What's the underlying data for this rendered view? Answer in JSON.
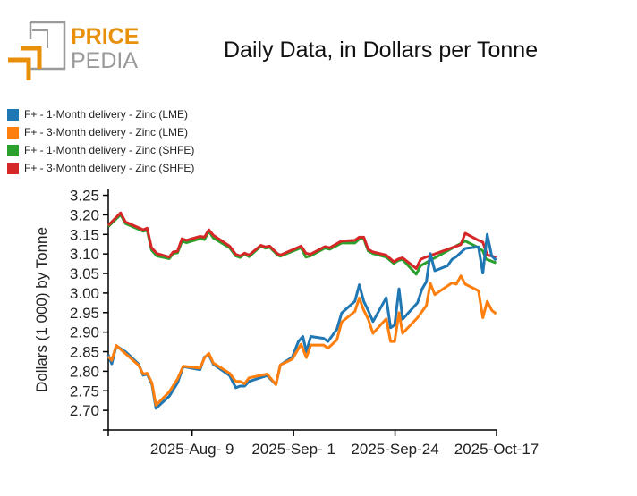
{
  "logo": {
    "text_top": "PRICE",
    "text_bottom": "PEDIA"
  },
  "chart_data": {
    "type": "line",
    "title": "Daily Data, in Dollars per Tonne",
    "xlabel": "",
    "ylabel": "Dollars (1 000) by Tonne",
    "x_unit": "days since 2025-Jul-21",
    "xlim": [
      0,
      88
    ],
    "ylim": [
      2.65,
      3.265
    ],
    "yticks": [
      "2.70",
      "2.75",
      "2.80",
      "2.85",
      "2.90",
      "2.95",
      "3.00",
      "3.05",
      "3.10",
      "3.15",
      "3.20",
      "3.25"
    ],
    "xticks": [
      {
        "x": 19,
        "label": "2025-Aug- 9"
      },
      {
        "x": 42,
        "label": "2025-Sep- 1"
      },
      {
        "x": 65,
        "label": "2025-Sep-24"
      },
      {
        "x": 88,
        "label": "2025-Oct-17"
      }
    ],
    "legend_placement": "top-left",
    "series": [
      {
        "name": "F+ - 1-Month delivery - Zinc (LME)",
        "color": "#1f77b4",
        "x": [
          0,
          0.8,
          1.8,
          3.9,
          6.9,
          7.9,
          8.8,
          9.9,
          10.8,
          13.8,
          15.7,
          17.0,
          20.8,
          21.8,
          22.8,
          23.8,
          27.5,
          28.9,
          29.9,
          30.9,
          31.9,
          36.0,
          38.0,
          39.0,
          41.7,
          43.1,
          44.1,
          44.9,
          45.9,
          48.8,
          49.8,
          51.8,
          52.9,
          55.9,
          56.9,
          57.9,
          58.9,
          60.0,
          63.0,
          64.0,
          64.9,
          65.9,
          66.7,
          70.1,
          71.1,
          72.1,
          73.0,
          74.0,
          76.9,
          77.9,
          78.9,
          80.9,
          83.9,
          84.9,
          85.9,
          86.9,
          87.9
        ],
        "y": [
          2.842,
          2.819,
          2.865,
          2.85,
          2.818,
          2.79,
          2.793,
          2.766,
          2.705,
          2.736,
          2.77,
          2.812,
          2.804,
          2.836,
          2.842,
          2.818,
          2.789,
          2.758,
          2.762,
          2.762,
          2.774,
          2.789,
          2.766,
          2.816,
          2.836,
          2.876,
          2.889,
          2.85,
          2.889,
          2.884,
          2.876,
          2.907,
          2.949,
          2.979,
          3.021,
          2.979,
          2.956,
          2.927,
          2.988,
          2.911,
          2.918,
          3.011,
          2.933,
          2.975,
          3.01,
          3.029,
          3.101,
          3.057,
          3.07,
          3.086,
          3.093,
          3.114,
          3.118,
          3.051,
          3.15,
          3.095,
          3.084
        ]
      },
      {
        "name": "F+ - 3-Month delivery - Zinc (LME)",
        "color": "#ff7f0e",
        "x": [
          0,
          0.8,
          1.8,
          6.9,
          7.9,
          8.8,
          9.9,
          10.8,
          13.8,
          15.7,
          17.0,
          20.8,
          21.8,
          22.8,
          23.8,
          27.5,
          28.9,
          29.9,
          30.9,
          31.9,
          36.0,
          38.0,
          39.0,
          41.7,
          43.7,
          44.9,
          45.9,
          48.8,
          49.8,
          51.8,
          52.9,
          55.9,
          56.9,
          57.9,
          58.9,
          60.0,
          63.0,
          64.0,
          64.9,
          65.9,
          66.7,
          70.1,
          72.1,
          73.0,
          74.0,
          77.9,
          78.9,
          79.9,
          80.9,
          83.9,
          84.9,
          85.9,
          86.9,
          87.9
        ],
        "y": [
          2.838,
          2.828,
          2.866,
          2.815,
          2.793,
          2.795,
          2.77,
          2.713,
          2.747,
          2.78,
          2.813,
          2.808,
          2.834,
          2.846,
          2.821,
          2.795,
          2.774,
          2.774,
          2.768,
          2.783,
          2.793,
          2.766,
          2.816,
          2.831,
          2.869,
          2.835,
          2.867,
          2.867,
          2.859,
          2.88,
          2.926,
          2.953,
          2.987,
          2.956,
          2.934,
          2.897,
          2.934,
          2.876,
          2.876,
          2.95,
          2.897,
          2.937,
          2.968,
          3.025,
          2.996,
          3.026,
          3.023,
          3.044,
          3.023,
          3.006,
          2.937,
          2.979,
          2.956,
          2.947
        ]
      },
      {
        "name": "F+ - 1-Month delivery - Zinc (SHFE)",
        "color": "#2ca02c",
        "x": [
          0,
          2.8,
          3.9,
          7.9,
          8.8,
          9.8,
          11.0,
          13.8,
          14.7,
          15.7,
          16.7,
          17.7,
          20.8,
          21.8,
          22.8,
          23.8,
          27.5,
          28.9,
          29.9,
          30.9,
          31.9,
          34.6,
          35.6,
          36.6,
          38.3,
          39.0,
          43.7,
          44.8,
          45.8,
          49.1,
          50.2,
          52.9,
          55.9,
          56.9,
          57.9,
          58.9,
          60.0,
          63.0,
          64.7,
          65.7,
          66.7,
          69.8,
          70.8,
          80.9,
          83.6,
          84.9,
          85.6,
          87.9
        ],
        "y": [
          3.17,
          3.201,
          3.178,
          3.158,
          3.162,
          3.11,
          3.095,
          3.088,
          3.101,
          3.103,
          3.133,
          3.129,
          3.139,
          3.137,
          3.158,
          3.141,
          3.116,
          3.095,
          3.091,
          3.1,
          3.093,
          3.12,
          3.115,
          3.117,
          3.098,
          3.094,
          3.116,
          3.092,
          3.095,
          3.115,
          3.112,
          3.128,
          3.128,
          3.138,
          3.139,
          3.108,
          3.101,
          3.092,
          3.076,
          3.083,
          3.086,
          3.048,
          3.07,
          3.133,
          3.118,
          3.108,
          3.087,
          3.077
        ]
      },
      {
        "name": "F+ - 3-Month delivery - Zinc (SHFE)",
        "color": "#d62728",
        "x": [
          0,
          2.8,
          3.9,
          7.9,
          8.8,
          9.8,
          11.0,
          13.8,
          14.7,
          15.7,
          16.7,
          17.7,
          20.8,
          21.8,
          22.8,
          23.8,
          27.5,
          28.9,
          29.9,
          30.9,
          31.9,
          34.6,
          35.6,
          36.6,
          38.3,
          39.0,
          43.7,
          44.8,
          45.8,
          49.1,
          50.2,
          52.9,
          55.9,
          56.9,
          57.9,
          58.9,
          60.0,
          63.0,
          64.7,
          65.7,
          66.7,
          69.8,
          70.8,
          71.8,
          79.9,
          80.9,
          83.9,
          84.9,
          85.9,
          86.9,
          87.9
        ],
        "y": [
          3.173,
          3.205,
          3.182,
          3.162,
          3.166,
          3.116,
          3.101,
          3.092,
          3.105,
          3.107,
          3.139,
          3.135,
          3.145,
          3.143,
          3.162,
          3.148,
          3.12,
          3.099,
          3.095,
          3.102,
          3.097,
          3.122,
          3.118,
          3.12,
          3.101,
          3.097,
          3.12,
          3.102,
          3.099,
          3.119,
          3.116,
          3.133,
          3.135,
          3.143,
          3.143,
          3.112,
          3.105,
          3.097,
          3.08,
          3.087,
          3.09,
          3.063,
          3.086,
          3.091,
          3.124,
          3.153,
          3.135,
          3.13,
          3.097,
          3.095,
          3.09
        ]
      }
    ]
  }
}
